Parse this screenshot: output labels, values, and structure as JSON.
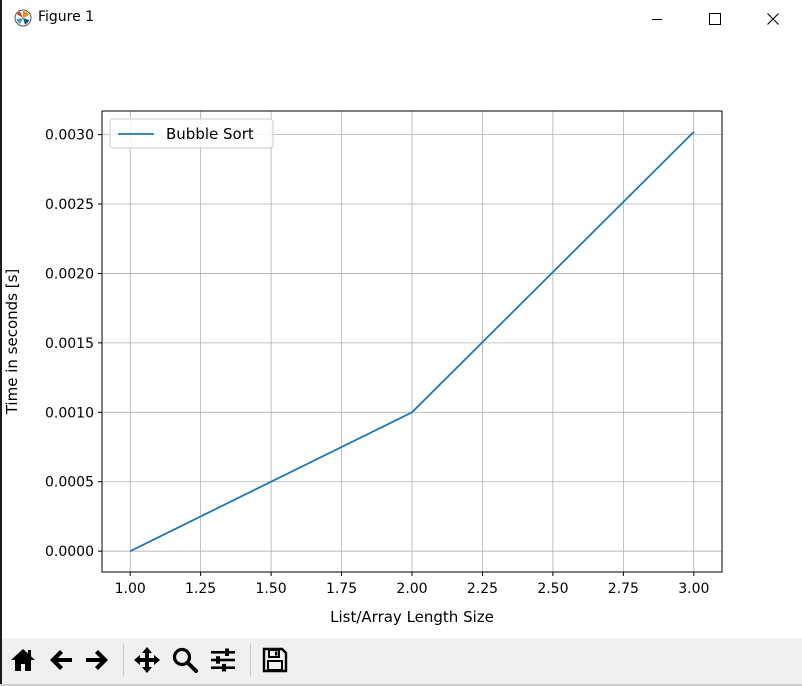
{
  "window": {
    "title": "Figure 1"
  },
  "chart_data": {
    "type": "line",
    "title": "",
    "xlabel": "List/Array Length Size",
    "ylabel": "Time in seconds [s]",
    "xlim": [
      0.9,
      3.1
    ],
    "ylim": [
      -0.00015,
      0.00317
    ],
    "xticks": [
      1.0,
      1.25,
      1.5,
      1.75,
      2.0,
      2.25,
      2.5,
      2.75,
      3.0
    ],
    "xtick_labels": [
      "1.00",
      "1.25",
      "1.50",
      "1.75",
      "2.00",
      "2.25",
      "2.50",
      "2.75",
      "3.00"
    ],
    "yticks": [
      0.0,
      0.0005,
      0.001,
      0.0015,
      0.002,
      0.0025,
      0.003
    ],
    "ytick_labels": [
      "0.0000",
      "0.0005",
      "0.0010",
      "0.0015",
      "0.0020",
      "0.0025",
      "0.0030"
    ],
    "grid": true,
    "legend_position": "upper-left",
    "series": [
      {
        "name": "Bubble Sort",
        "color": "#1f77b4",
        "x": [
          1,
          2,
          3
        ],
        "y": [
          0.0,
          0.001,
          0.00302
        ]
      }
    ]
  },
  "toolbar": {
    "icons": [
      "home-icon",
      "back-arrow-icon",
      "forward-arrow-icon",
      "pan-icon",
      "zoom-icon",
      "configure-subplots-icon",
      "save-icon"
    ]
  }
}
